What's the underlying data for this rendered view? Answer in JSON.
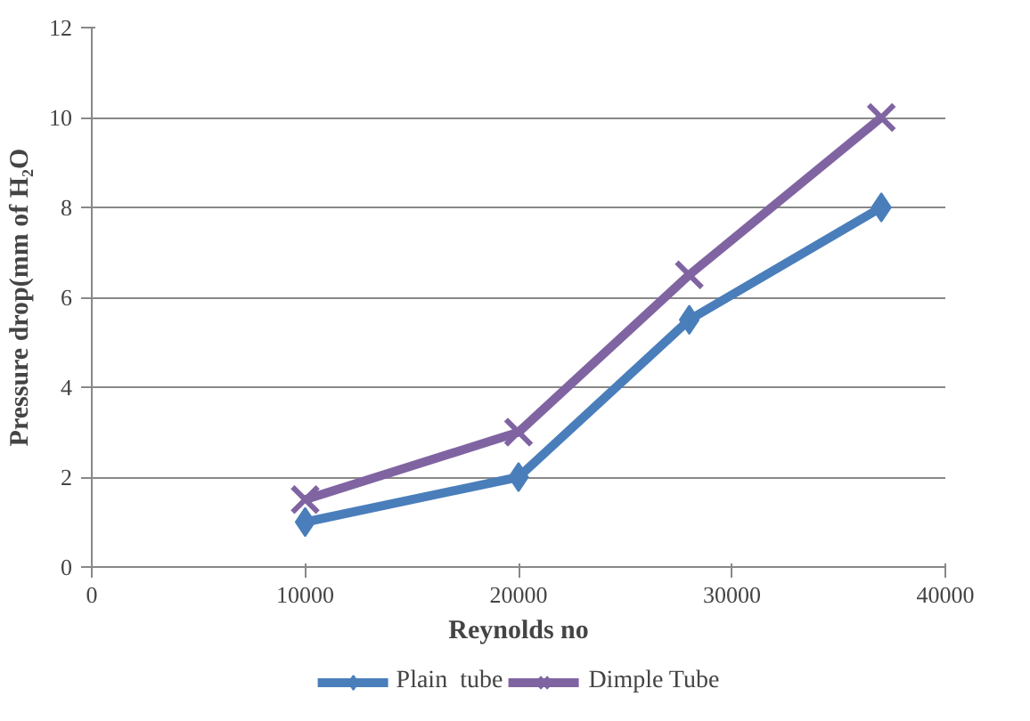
{
  "chart_data": {
    "type": "line",
    "xlabel": "Reynolds no",
    "ylabel": "Pressure drop(mm of H₂O",
    "xlim": [
      0,
      40000
    ],
    "xticks": [
      0,
      10000,
      20000,
      30000,
      40000
    ],
    "ylim": [
      0,
      12
    ],
    "yticks": [
      0,
      2,
      4,
      6,
      8,
      10,
      12
    ],
    "grid": "y",
    "legend": "bottom",
    "series": [
      {
        "name": "Plain  tube",
        "color": "#4a7ebb",
        "marker": "diamond",
        "x": [
          10000,
          20000,
          28000,
          37000
        ],
        "values": [
          1,
          2,
          5.5,
          8
        ]
      },
      {
        "name": "Dimple Tube",
        "color": "#8064a2",
        "marker": "cross",
        "x": [
          10000,
          20000,
          28000,
          37000
        ],
        "values": [
          1.5,
          3,
          6.5,
          10
        ]
      }
    ]
  }
}
